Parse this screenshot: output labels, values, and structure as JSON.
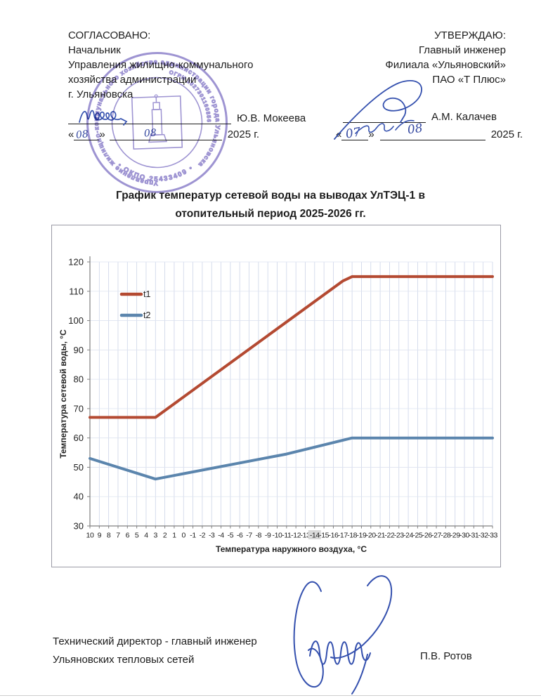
{
  "approve_left": {
    "heading": "СОГЛАСОВАНО:",
    "line1": "Начальник",
    "line2": "Управления жилищно-коммунального",
    "line3": "хозяйства администрации",
    "line4": "г. Ульяновска",
    "signatory": "Ю.В. Мокеева",
    "day": "08",
    "month": "08",
    "year_label": "2025 г."
  },
  "approve_right": {
    "heading": "УТВЕРЖДАЮ:",
    "line1": "Главный инженер",
    "line2": "Филиала «Ульяновский»",
    "line3": "ПАО «Т Плюс»",
    "signatory": "А.М. Калачев",
    "day": "07",
    "month": "08",
    "year_label": "2025 г."
  },
  "stamp": {
    "ring_text": "Управление жилищно-коммунального хозяйства администрации города Ульяновска",
    "okpo_text": "• ОКПО 25433409 •",
    "ogrn_text": "ОГРН 1027301160856"
  },
  "title": "График температур сетевой воды на выводах УлТЭЦ-1 в отопительный период 2025-2026 гг.",
  "footer": {
    "line1": "Технический директор - главный инженер",
    "line2": "Ульяновских тепловых сетей",
    "signatory": "П.В. Ротов"
  },
  "chart_data": {
    "type": "line",
    "title": "График температур сетевой воды на выводах УлТЭЦ-1 в отопительный период 2025-2026 гг.",
    "xlabel": "Температура наружного воздуха, °С",
    "ylabel": "Температура сетевой воды, °С",
    "x_categories": [
      10,
      9,
      8,
      7,
      6,
      5,
      4,
      3,
      2,
      1,
      0,
      -1,
      -2,
      -3,
      -4,
      -5,
      -6,
      -7,
      -8,
      -9,
      -10,
      -11,
      -12,
      -13,
      -14,
      -15,
      -16,
      -17,
      -18,
      -19,
      -20,
      -21,
      -22,
      -23,
      -24,
      -25,
      -26,
      -27,
      -28,
      -29,
      -30,
      -31,
      -32,
      -33
    ],
    "highlight_x_tick": -14,
    "ylim": [
      30,
      120
    ],
    "ytick_step": 10,
    "grid": true,
    "legend_position": "inside-top-left",
    "series": [
      {
        "name": "t1",
        "color": "#b44a32",
        "points": [
          [
            10,
            67
          ],
          [
            3,
            67
          ],
          [
            -17,
            113.5
          ],
          [
            -18,
            115
          ],
          [
            -33,
            115
          ]
        ]
      },
      {
        "name": "t2",
        "color": "#5b85ad",
        "points": [
          [
            10,
            53
          ],
          [
            3,
            46
          ],
          [
            -11,
            54.5
          ],
          [
            -18,
            60
          ],
          [
            -33,
            60
          ]
        ]
      }
    ]
  }
}
